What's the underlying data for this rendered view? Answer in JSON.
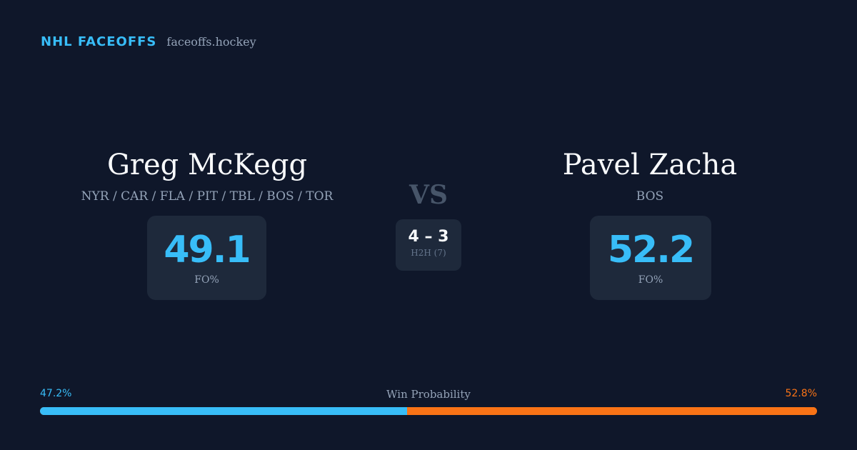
{
  "header": {
    "brand": "NHL FACEOFFS",
    "domain": "faceoffs.hockey"
  },
  "players": {
    "left": {
      "name": "Greg McKegg",
      "teams": "NYR / CAR / FLA / PIT / TBL / BOS / TOR",
      "fo_pct": "49.1",
      "fo_label": "FO%"
    },
    "right": {
      "name": "Pavel Zacha",
      "teams": "BOS",
      "fo_pct": "52.2",
      "fo_label": "FO%"
    }
  },
  "versus": {
    "label": "VS",
    "h2h_score": "4 – 3",
    "h2h_label": "H2H (7)"
  },
  "win_probability": {
    "title": "Win Probability",
    "left_label": "47.2%",
    "right_label": "52.8%",
    "left_value": 47.2,
    "right_value": 52.8
  },
  "colors": {
    "background": "#0f172a",
    "card": "#1e293b",
    "accent_blue": "#38bdf8",
    "accent_orange": "#f97316",
    "muted_text": "#94a3b8"
  }
}
